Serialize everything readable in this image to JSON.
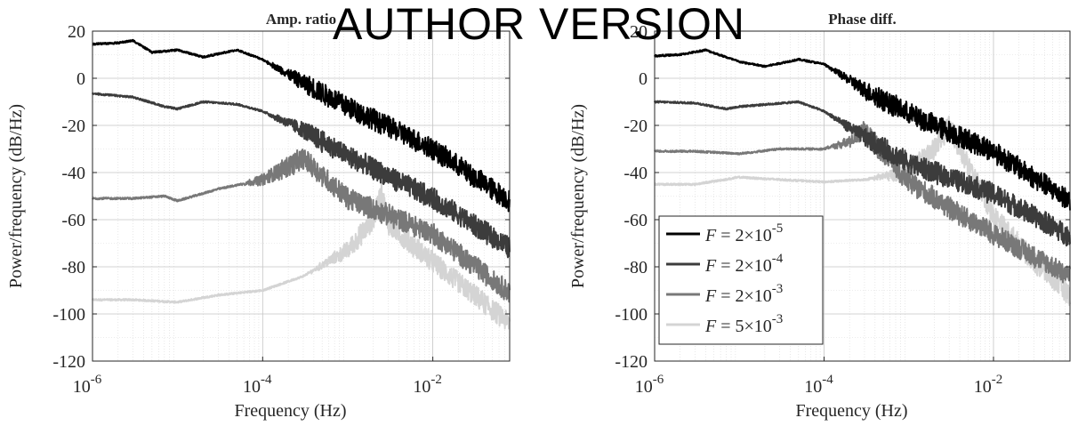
{
  "watermark": "AUTHOR VERSION",
  "legend": [
    "F = 2×10^-5",
    "F = 2×10^-4",
    "F = 2×10^-3",
    "F = 5×10^-3"
  ],
  "chart_data": [
    {
      "type": "line",
      "title": "Amp. ratio",
      "xlabel": "Frequency (Hz)",
      "ylabel": "Power/frequency (dB/Hz)",
      "xscale": "log",
      "xlim": [
        1e-06,
        0.08
      ],
      "ylim": [
        -120,
        20
      ],
      "xticks": [
        1e-06,
        0.0001,
        0.01
      ],
      "xtick_labels": [
        {
          "base": "10",
          "exp": "-6"
        },
        {
          "base": "10",
          "exp": "-4"
        },
        {
          "base": "10",
          "exp": "-2"
        }
      ],
      "yticks": [
        -120,
        -100,
        -80,
        -60,
        -40,
        -20,
        0,
        20
      ],
      "grid": true,
      "series": [
        {
          "color": "#000000",
          "noise_start": -4,
          "band": 9,
          "points": [
            [
              1e-06,
              14.5
            ],
            [
              2e-06,
              15
            ],
            [
              3e-06,
              16
            ],
            [
              5e-06,
              11
            ],
            [
              1e-05,
              12
            ],
            [
              2e-05,
              9
            ],
            [
              5e-05,
              12
            ],
            [
              0.0001,
              8
            ],
            [
              0.0003,
              -2
            ],
            [
              0.001,
              -12
            ],
            [
              0.01,
              -30
            ],
            [
              0.08,
              -52
            ]
          ]
        },
        {
          "color": "#3c3c3c",
          "noise_start": -4,
          "band": 9,
          "points": [
            [
              1e-06,
              -6.5
            ],
            [
              3e-06,
              -8
            ],
            [
              7e-06,
              -12
            ],
            [
              1e-05,
              -13
            ],
            [
              2e-05,
              -10
            ],
            [
              5e-05,
              -11
            ],
            [
              0.0001,
              -14
            ],
            [
              0.0003,
              -22
            ],
            [
              0.001,
              -33
            ],
            [
              0.01,
              -51
            ],
            [
              0.08,
              -72
            ]
          ]
        },
        {
          "color": "#787878",
          "noise_start": -4.3,
          "band": 9,
          "points": [
            [
              1e-06,
              -51
            ],
            [
              3e-06,
              -51
            ],
            [
              7e-06,
              -50
            ],
            [
              1e-05,
              -52
            ],
            [
              3e-05,
              -47
            ],
            [
              0.0001,
              -43
            ],
            [
              0.0003,
              -34
            ],
            [
              0.0004,
              -38
            ],
            [
              0.001,
              -51
            ],
            [
              0.003,
              -58
            ],
            [
              0.01,
              -66
            ],
            [
              0.08,
              -91
            ]
          ]
        },
        {
          "color": "#d4d4d4",
          "noise_start": -3.5,
          "band": 9,
          "points": [
            [
              1e-06,
              -94
            ],
            [
              3e-06,
              -94
            ],
            [
              1e-05,
              -95
            ],
            [
              3e-05,
              -92
            ],
            [
              0.0001,
              -90
            ],
            [
              0.0003,
              -84
            ],
            [
              0.001,
              -73
            ],
            [
              0.002,
              -60
            ],
            [
              0.0025,
              -48
            ],
            [
              0.003,
              -62
            ],
            [
              0.01,
              -78
            ],
            [
              0.08,
              -104
            ]
          ]
        }
      ]
    },
    {
      "type": "line",
      "title": "Phase diff.",
      "xlabel": "Frequency (Hz)",
      "ylabel": "Power/frequency (dB/Hz)",
      "xscale": "log",
      "xlim": [
        1e-06,
        0.08
      ],
      "ylim": [
        -120,
        20
      ],
      "xticks": [
        1e-06,
        0.0001,
        0.01
      ],
      "xtick_labels": [
        {
          "base": "10",
          "exp": "-6"
        },
        {
          "base": "10",
          "exp": "-4"
        },
        {
          "base": "10",
          "exp": "-2"
        }
      ],
      "yticks": [
        -120,
        -100,
        -80,
        -60,
        -40,
        -20,
        0,
        20
      ],
      "grid": true,
      "legend_position": "bottom-left",
      "series": [
        {
          "color": "#000000",
          "noise_start": -4,
          "band": 9,
          "points": [
            [
              1e-06,
              9.5
            ],
            [
              2e-06,
              10
            ],
            [
              4e-06,
              12
            ],
            [
              1e-05,
              7
            ],
            [
              2e-05,
              5
            ],
            [
              5e-05,
              8
            ],
            [
              0.0001,
              6
            ],
            [
              0.0003,
              -5
            ],
            [
              0.001,
              -15
            ],
            [
              0.01,
              -31
            ],
            [
              0.08,
              -52
            ]
          ]
        },
        {
          "color": "#3c3c3c",
          "noise_start": -4,
          "band": 9,
          "points": [
            [
              1e-06,
              -10
            ],
            [
              3e-06,
              -10.5
            ],
            [
              7e-06,
              -13
            ],
            [
              1e-05,
              -12
            ],
            [
              5e-05,
              -10
            ],
            [
              0.0001,
              -14
            ],
            [
              0.0003,
              -25
            ],
            [
              0.001,
              -36
            ],
            [
              0.01,
              -49
            ],
            [
              0.08,
              -67
            ]
          ]
        },
        {
          "color": "#787878",
          "noise_start": -4,
          "band": 9,
          "points": [
            [
              1e-06,
              -31
            ],
            [
              3e-06,
              -31
            ],
            [
              1e-05,
              -32
            ],
            [
              3e-05,
              -30
            ],
            [
              0.0001,
              -30
            ],
            [
              0.0002,
              -27
            ],
            [
              0.0003,
              -22
            ],
            [
              0.0004,
              -28
            ],
            [
              0.001,
              -44
            ],
            [
              0.003,
              -55
            ],
            [
              0.01,
              -66
            ],
            [
              0.08,
              -84
            ]
          ]
        },
        {
          "color": "#d4d4d4",
          "noise_start": -3.5,
          "band": 9,
          "points": [
            [
              1e-06,
              -45
            ],
            [
              3e-06,
              -45
            ],
            [
              1e-05,
              -42
            ],
            [
              3e-05,
              -43
            ],
            [
              0.0001,
              -44
            ],
            [
              0.0003,
              -43
            ],
            [
              0.001,
              -40
            ],
            [
              0.002,
              -30
            ],
            [
              0.003,
              -20
            ],
            [
              0.004,
              -30
            ],
            [
              0.01,
              -58
            ],
            [
              0.03,
              -78
            ],
            [
              0.08,
              -92
            ]
          ]
        }
      ]
    }
  ]
}
